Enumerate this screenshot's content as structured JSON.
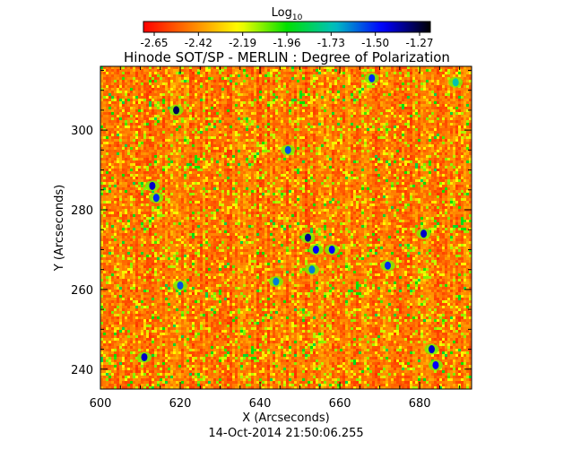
{
  "chart_data": {
    "type": "heatmap",
    "title": "Hinode SOT/SP - MERLIN : Degree of Polarization",
    "xlabel": "X (Arcseconds)",
    "ylabel": "Y (Arcseconds)",
    "timestamp": "14-Oct-2014 21:50:06.255",
    "colorbar": {
      "label_base": "Log",
      "label_sub": "10",
      "ticks": [
        "-2.65",
        "-2.42",
        "-2.19",
        "-1.96",
        "-1.73",
        "-1.50",
        "-1.27"
      ],
      "range": [
        -2.65,
        -1.27
      ],
      "colormap": [
        "#ff0000",
        "#ff8000",
        "#ffff00",
        "#00e000",
        "#00c0c0",
        "#0000ff",
        "#000000"
      ]
    },
    "xaxis": {
      "range": [
        600,
        693
      ],
      "major_ticks": [
        600,
        620,
        640,
        660,
        680
      ],
      "tick_labels": [
        "600",
        "620",
        "640",
        "660",
        "680"
      ]
    },
    "yaxis": {
      "range": [
        235,
        316
      ],
      "major_ticks": [
        240,
        260,
        280,
        300
      ],
      "tick_labels": [
        "240",
        "260",
        "280",
        "300"
      ]
    },
    "grid": false,
    "features": [
      {
        "x": 619,
        "y": 305,
        "v": -1.35
      },
      {
        "x": 613,
        "y": 286,
        "v": -1.45
      },
      {
        "x": 614,
        "y": 283,
        "v": -1.55
      },
      {
        "x": 611,
        "y": 243,
        "v": -1.45
      },
      {
        "x": 620,
        "y": 261,
        "v": -1.6
      },
      {
        "x": 647,
        "y": 295,
        "v": -1.6
      },
      {
        "x": 652,
        "y": 273,
        "v": -1.4
      },
      {
        "x": 654,
        "y": 270,
        "v": -1.5
      },
      {
        "x": 653,
        "y": 265,
        "v": -1.65
      },
      {
        "x": 658,
        "y": 270,
        "v": -1.5
      },
      {
        "x": 644,
        "y": 262,
        "v": -1.65
      },
      {
        "x": 672,
        "y": 266,
        "v": -1.55
      },
      {
        "x": 681,
        "y": 274,
        "v": -1.45
      },
      {
        "x": 683,
        "y": 245,
        "v": -1.45
      },
      {
        "x": 684,
        "y": 241,
        "v": -1.5
      },
      {
        "x": 668,
        "y": 313,
        "v": -1.55
      },
      {
        "x": 689,
        "y": 312,
        "v": -1.75
      }
    ]
  }
}
